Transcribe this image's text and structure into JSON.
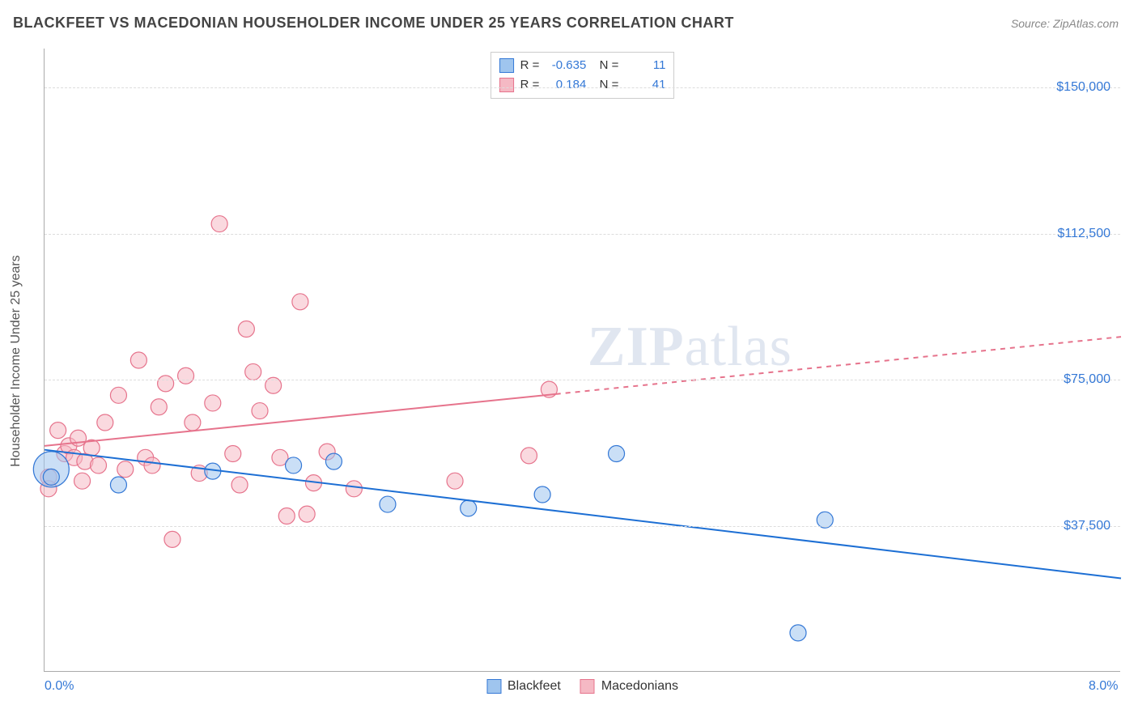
{
  "header": {
    "title": "BLACKFEET VS MACEDONIAN HOUSEHOLDER INCOME UNDER 25 YEARS CORRELATION CHART",
    "source": "Source: ZipAtlas.com"
  },
  "watermark": {
    "zip": "ZIP",
    "rest": "atlas"
  },
  "chart": {
    "type": "scatter",
    "background_color": "#ffffff",
    "grid_color": "#dddddd",
    "axis_color": "#aaaaaa",
    "ylabel": "Householder Income Under 25 years",
    "label_fontsize": 16,
    "tick_fontsize": 16,
    "tick_color": "#3478d6",
    "xlim": [
      0.0,
      8.0
    ],
    "ylim": [
      0,
      160000
    ],
    "xticks": [
      {
        "value": 0.0,
        "label": "0.0%"
      },
      {
        "value": 8.0,
        "label": "8.0%"
      }
    ],
    "yticks": [
      {
        "value": 37500,
        "label": "$37,500"
      },
      {
        "value": 75000,
        "label": "$75,000"
      },
      {
        "value": 112500,
        "label": "$112,500"
      },
      {
        "value": 150000,
        "label": "$150,000"
      }
    ],
    "series": [
      {
        "name": "Blackfeet",
        "color_fill": "#9fc5ee",
        "color_stroke": "#3478d6",
        "fill_opacity": 0.55,
        "marker_radius": 10,
        "R": "-0.635",
        "N": "11",
        "trend": {
          "y_at_x0": 57000,
          "y_at_x8": 24000,
          "color": "#1d6fd4",
          "width": 2
        },
        "points": [
          {
            "x": 0.05,
            "y": 52000,
            "r": 22
          },
          {
            "x": 0.05,
            "y": 50000
          },
          {
            "x": 0.55,
            "y": 48000
          },
          {
            "x": 1.25,
            "y": 51500
          },
          {
            "x": 1.85,
            "y": 53000
          },
          {
            "x": 2.15,
            "y": 54000
          },
          {
            "x": 2.55,
            "y": 43000
          },
          {
            "x": 3.15,
            "y": 42000
          },
          {
            "x": 3.7,
            "y": 45500
          },
          {
            "x": 4.25,
            "y": 56000
          },
          {
            "x": 5.8,
            "y": 39000
          },
          {
            "x": 5.6,
            "y": 10000
          }
        ]
      },
      {
        "name": "Macedonians",
        "color_fill": "#f5b9c4",
        "color_stroke": "#e6738c",
        "fill_opacity": 0.55,
        "marker_radius": 10,
        "R": "0.184",
        "N": "41",
        "trend": {
          "y_at_x0": 58000,
          "y_at_x8": 86000,
          "color": "#e6738c",
          "width": 2,
          "dash_after_x": 3.8
        },
        "points": [
          {
            "x": 0.03,
            "y": 50000
          },
          {
            "x": 0.03,
            "y": 47000
          },
          {
            "x": 0.1,
            "y": 62000
          },
          {
            "x": 0.15,
            "y": 56000
          },
          {
            "x": 0.18,
            "y": 58000
          },
          {
            "x": 0.22,
            "y": 55000
          },
          {
            "x": 0.25,
            "y": 60000
          },
          {
            "x": 0.28,
            "y": 49000
          },
          {
            "x": 0.3,
            "y": 54000
          },
          {
            "x": 0.35,
            "y": 57500
          },
          {
            "x": 0.4,
            "y": 53000
          },
          {
            "x": 0.45,
            "y": 64000
          },
          {
            "x": 0.55,
            "y": 71000
          },
          {
            "x": 0.6,
            "y": 52000
          },
          {
            "x": 0.7,
            "y": 80000
          },
          {
            "x": 0.75,
            "y": 55000
          },
          {
            "x": 0.8,
            "y": 53000
          },
          {
            "x": 0.85,
            "y": 68000
          },
          {
            "x": 0.9,
            "y": 74000
          },
          {
            "x": 0.95,
            "y": 34000
          },
          {
            "x": 1.05,
            "y": 76000
          },
          {
            "x": 1.1,
            "y": 64000
          },
          {
            "x": 1.15,
            "y": 51000
          },
          {
            "x": 1.25,
            "y": 69000
          },
          {
            "x": 1.3,
            "y": 115000
          },
          {
            "x": 1.4,
            "y": 56000
          },
          {
            "x": 1.45,
            "y": 48000
          },
          {
            "x": 1.5,
            "y": 88000
          },
          {
            "x": 1.55,
            "y": 77000
          },
          {
            "x": 1.6,
            "y": 67000
          },
          {
            "x": 1.7,
            "y": 73500
          },
          {
            "x": 1.75,
            "y": 55000
          },
          {
            "x": 1.8,
            "y": 40000
          },
          {
            "x": 1.9,
            "y": 95000
          },
          {
            "x": 1.95,
            "y": 40500
          },
          {
            "x": 2.0,
            "y": 48500
          },
          {
            "x": 2.1,
            "y": 56500
          },
          {
            "x": 2.3,
            "y": 47000
          },
          {
            "x": 3.05,
            "y": 49000
          },
          {
            "x": 3.75,
            "y": 72500
          },
          {
            "x": 3.6,
            "y": 55500
          }
        ]
      }
    ],
    "bottom_legend": [
      {
        "label": "Blackfeet",
        "fill": "#9fc5ee",
        "stroke": "#3478d6"
      },
      {
        "label": "Macedonians",
        "fill": "#f5b9c4",
        "stroke": "#e6738c"
      }
    ]
  }
}
